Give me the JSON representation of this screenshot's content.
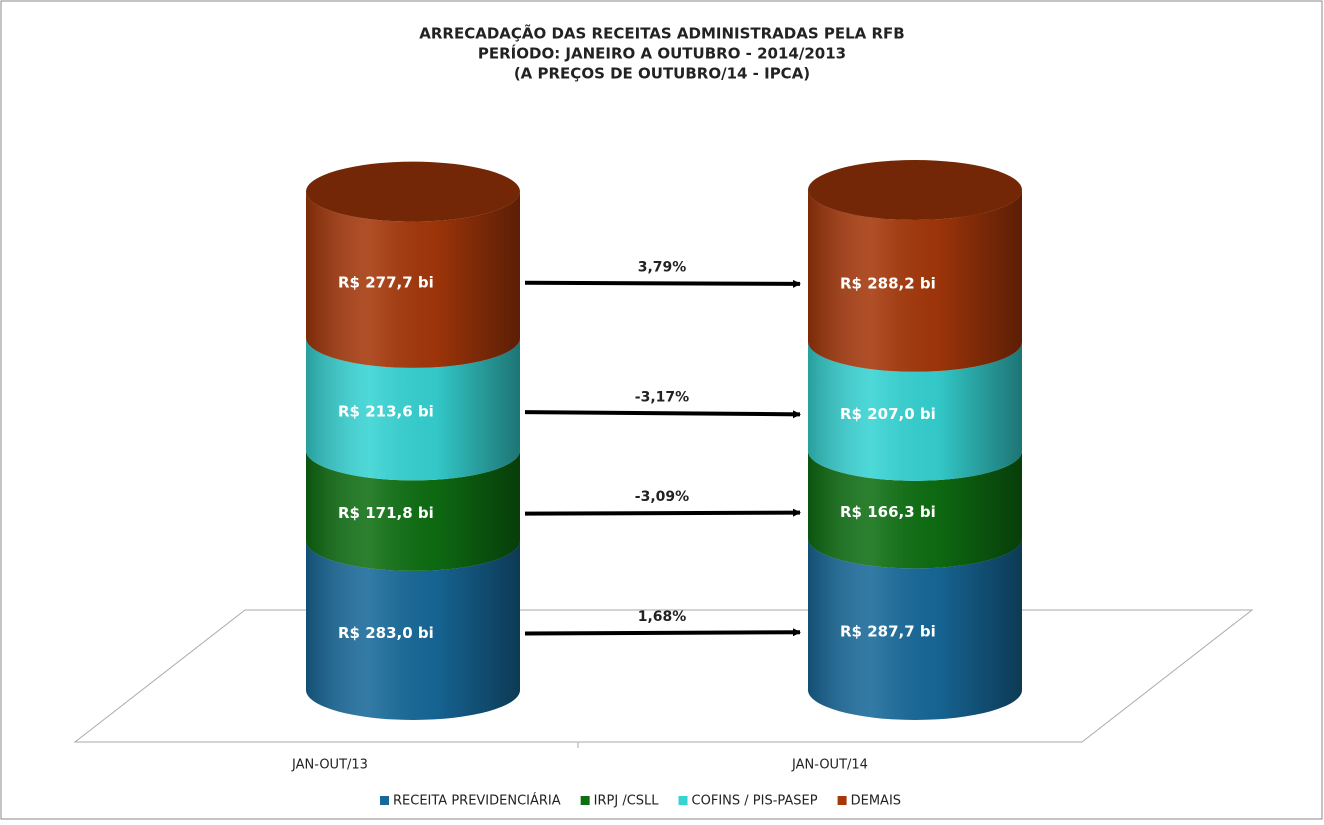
{
  "chart_data": {
    "type": "stacked-cylinder",
    "title": [
      "ARRECADAÇÃO DAS RECEITAS ADMINISTRADAS PELA RFB",
      "PERÍODO: JANEIRO A OUTUBRO - 2014/2013",
      "(A PREÇOS DE OUTUBRO/14 - IPCA)"
    ],
    "categories": [
      "JAN-OUT/13",
      "JAN-OUT/14"
    ],
    "series": [
      {
        "name": "RECEITA PREVIDENCIÁRIA",
        "color": "#17699a",
        "values": [
          283.0,
          287.7
        ],
        "value_labels": [
          "R$ 283,0  bi",
          "R$ 287,7  bi"
        ]
      },
      {
        "name": "IRPJ /CSLL",
        "color": "#0e6f12",
        "values": [
          171.8,
          166.3
        ],
        "value_labels": [
          "R$ 171,8  bi",
          "R$ 166,3  bi"
        ]
      },
      {
        "name": "COFINS / PIS-PASEP",
        "color": "#36d3d3",
        "values": [
          213.6,
          207.0
        ],
        "value_labels": [
          "R$ 213,6  bi",
          "R$ 207,0  bi"
        ]
      },
      {
        "name": "DEMAIS",
        "color": "#a5370a",
        "values": [
          277.7,
          288.2
        ],
        "value_labels": [
          "R$ 277,7  bi",
          "R$ 288,2  bi"
        ]
      }
    ],
    "annotations": [
      "1,68%",
      "-3,09%",
      "-3,17%",
      "3,79%"
    ],
    "legend": "bottom"
  }
}
